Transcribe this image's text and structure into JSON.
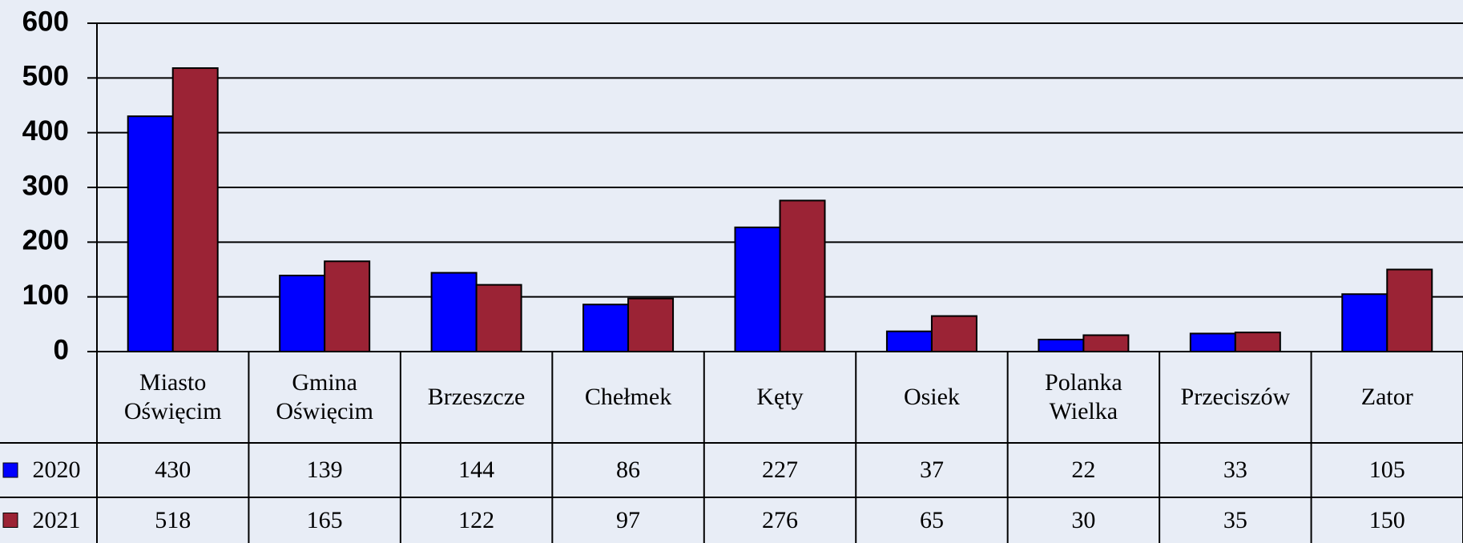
{
  "chart_data": {
    "type": "bar",
    "categories": [
      "Miasto\nOświęcim",
      "Gmina\nOświęcim",
      "Brzeszcze",
      "Chełmek",
      "Kęty",
      "Osiek",
      "Polanka\nWielka",
      "Przeciszów",
      "Zator"
    ],
    "series": [
      {
        "name": "2020",
        "color": "#0000ff",
        "values": [
          430,
          139,
          144,
          86,
          227,
          37,
          22,
          33,
          105
        ]
      },
      {
        "name": "2021",
        "color": "#9b2335",
        "values": [
          518,
          165,
          122,
          97,
          276,
          65,
          30,
          35,
          150
        ]
      }
    ],
    "ylim": [
      0,
      600
    ],
    "yticks": [
      0,
      100,
      200,
      300,
      400,
      500,
      600
    ],
    "grid": true
  }
}
